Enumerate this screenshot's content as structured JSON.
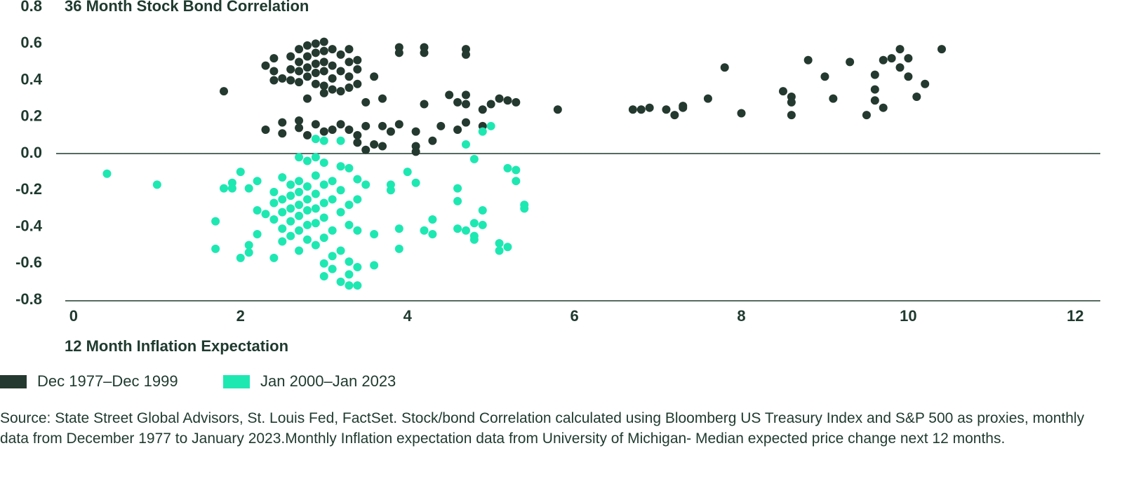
{
  "chart_data": {
    "type": "scatter",
    "title": "36 Month Stock Bond Correlation",
    "x_label": "12 Month Inflation Expectation",
    "source": "Source: State Street Global Advisors, St. Louis Fed, FactSet. Stock/bond Correlation calculated using Bloomberg US Treasury Index and S&P 500 as proxies, monthly data from December 1977 to January 2023.Monthly Inflation expectation data from University of Michigan- Median expected price change next 12 months.",
    "xlim": [
      -0.1,
      12.3
    ],
    "ylim": [
      -0.8,
      0.8
    ],
    "xticks": [
      0,
      2,
      4,
      6,
      8,
      10,
      12
    ],
    "yticks": [
      -0.8,
      -0.6,
      -0.4,
      -0.2,
      {
        "value": 0,
        "label": "0.0"
      },
      0.2,
      0.4,
      0.6,
      0.8
    ],
    "series": [
      {
        "name": "Dec 1977–Dec 1999",
        "color": "#24392f",
        "x": [
          1.8,
          2.3,
          2.4,
          2.4,
          2.4,
          2.5,
          2.6,
          2.6,
          2.6,
          2.7,
          2.7,
          2.7,
          2.7,
          2.8,
          2.8,
          2.8,
          2.8,
          2.8,
          2.9,
          2.9,
          2.9,
          2.9,
          2.9,
          3.0,
          3.0,
          3.0,
          3.0,
          3.0,
          3.0,
          3.1,
          3.1,
          3.1,
          3.1,
          3.2,
          3.2,
          3.2,
          3.3,
          3.3,
          3.3,
          3.3,
          3.4,
          3.4,
          3.4,
          3.5,
          3.6,
          3.7,
          3.9,
          3.9,
          4.2,
          4.2,
          4.2,
          4.5,
          4.6,
          4.7,
          4.7,
          4.7,
          4.7,
          4.9,
          5.0,
          5.1,
          5.2,
          5.3,
          5.8,
          2.3,
          2.5,
          2.5,
          2.7,
          2.7,
          2.8,
          2.9,
          3.0,
          3.1,
          3.2,
          3.3,
          3.4,
          3.4,
          3.5,
          3.5,
          3.6,
          3.7,
          3.7,
          3.8,
          3.9,
          4.1,
          4.1,
          4.1,
          4.3,
          4.4,
          4.6,
          4.7,
          4.9,
          6.7,
          6.8,
          6.9,
          7.1,
          7.2,
          7.3,
          7.3,
          7.6,
          7.8,
          8.0,
          8.5,
          8.6,
          8.6,
          8.6,
          8.8,
          9.0,
          9.1,
          9.3,
          9.5,
          9.6,
          9.6,
          9.6,
          9.7,
          9.7,
          9.8,
          9.9,
          9.9,
          10.0,
          10.0,
          10.1,
          10.2,
          10.4
        ],
        "values": [
          0.34,
          0.48,
          0.52,
          0.45,
          0.4,
          0.41,
          0.53,
          0.46,
          0.4,
          0.57,
          0.5,
          0.45,
          0.39,
          0.59,
          0.53,
          0.47,
          0.42,
          0.3,
          0.6,
          0.55,
          0.49,
          0.44,
          0.38,
          0.61,
          0.56,
          0.5,
          0.45,
          0.37,
          0.33,
          0.57,
          0.48,
          0.41,
          0.35,
          0.54,
          0.45,
          0.34,
          0.57,
          0.5,
          0.42,
          0.36,
          0.51,
          0.46,
          0.38,
          0.28,
          0.42,
          0.3,
          0.58,
          0.55,
          0.58,
          0.55,
          0.27,
          0.32,
          0.28,
          0.57,
          0.54,
          0.32,
          0.27,
          0.24,
          0.27,
          0.3,
          0.29,
          0.28,
          0.24,
          0.13,
          0.17,
          0.11,
          0.18,
          0.14,
          0.1,
          0.16,
          0.12,
          0.13,
          0.16,
          0.13,
          0.1,
          0.06,
          0.15,
          0.02,
          0.05,
          0.15,
          0.04,
          0.12,
          0.16,
          0.12,
          0.04,
          0.01,
          0.07,
          0.15,
          0.13,
          0.17,
          0.15,
          0.24,
          0.24,
          0.25,
          0.24,
          0.21,
          0.26,
          0.25,
          0.3,
          0.47,
          0.22,
          0.34,
          0.31,
          0.28,
          0.21,
          0.51,
          0.42,
          0.3,
          0.5,
          0.21,
          0.43,
          0.35,
          0.29,
          0.25,
          0.51,
          0.52,
          0.57,
          0.47,
          0.52,
          0.42,
          0.31,
          0.38,
          0.57
        ]
      },
      {
        "name": "Jan 2000–Jan 2023",
        "color": "#1ee8b2",
        "x": [
          0.4,
          1.0,
          1.7,
          1.7,
          1.8,
          1.9,
          1.9,
          2.0,
          2.0,
          2.1,
          2.1,
          2.1,
          2.2,
          2.2,
          2.2,
          2.3,
          2.4,
          2.4,
          2.4,
          2.4,
          2.5,
          2.5,
          2.5,
          2.5,
          2.5,
          2.6,
          2.6,
          2.6,
          2.6,
          2.6,
          2.7,
          2.7,
          2.7,
          2.7,
          2.7,
          2.7,
          2.7,
          2.8,
          2.8,
          2.8,
          2.8,
          2.8,
          2.8,
          2.9,
          2.9,
          2.9,
          2.9,
          2.9,
          2.9,
          2.9,
          3.0,
          3.0,
          3.0,
          3.0,
          3.0,
          3.0,
          3.0,
          3.0,
          3.1,
          3.1,
          3.1,
          3.1,
          3.1,
          3.2,
          3.2,
          3.2,
          3.2,
          3.2,
          3.2,
          3.3,
          3.3,
          3.3,
          3.3,
          3.3,
          3.3,
          3.4,
          3.4,
          3.4,
          3.4,
          3.4,
          3.5,
          3.6,
          3.6,
          3.8,
          3.8,
          3.9,
          3.9,
          4.0,
          4.1,
          4.2,
          4.3,
          4.3,
          4.6,
          4.6,
          4.6,
          4.7,
          4.7,
          4.8,
          4.8,
          4.8,
          4.8,
          4.9,
          4.9,
          4.9,
          5.0,
          5.1,
          5.1,
          5.2,
          5.2,
          5.3,
          5.3,
          5.4,
          5.4
        ],
        "values": [
          -0.11,
          -0.17,
          -0.37,
          -0.52,
          -0.19,
          -0.16,
          -0.19,
          -0.1,
          -0.57,
          -0.19,
          -0.5,
          -0.54,
          -0.15,
          -0.31,
          -0.44,
          -0.33,
          -0.21,
          -0.27,
          -0.36,
          -0.57,
          -0.13,
          -0.25,
          -0.32,
          -0.41,
          -0.48,
          -0.17,
          -0.23,
          -0.3,
          -0.37,
          -0.45,
          -0.02,
          -0.15,
          -0.21,
          -0.28,
          -0.34,
          -0.42,
          -0.53,
          -0.04,
          -0.18,
          -0.25,
          -0.31,
          -0.39,
          -0.47,
          0.08,
          -0.02,
          -0.12,
          -0.22,
          -0.3,
          -0.38,
          -0.5,
          0.07,
          -0.05,
          -0.17,
          -0.27,
          -0.35,
          -0.46,
          -0.6,
          -0.67,
          -0.15,
          -0.25,
          -0.42,
          -0.56,
          -0.63,
          -0.7,
          -0.53,
          -0.32,
          -0.2,
          0.07,
          -0.07,
          -0.08,
          -0.28,
          -0.39,
          -0.59,
          -0.72,
          -0.66,
          -0.72,
          -0.62,
          -0.42,
          -0.25,
          -0.14,
          -0.17,
          -0.44,
          -0.61,
          -0.17,
          -0.2,
          -0.41,
          -0.52,
          -0.1,
          -0.16,
          -0.42,
          -0.36,
          -0.44,
          -0.19,
          -0.26,
          -0.41,
          -0.42,
          0.05,
          -0.03,
          -0.38,
          -0.45,
          -0.47,
          -0.31,
          -0.39,
          0.12,
          0.15,
          -0.49,
          -0.53,
          -0.08,
          -0.51,
          -0.09,
          -0.15,
          -0.28,
          -0.3
        ]
      }
    ]
  }
}
